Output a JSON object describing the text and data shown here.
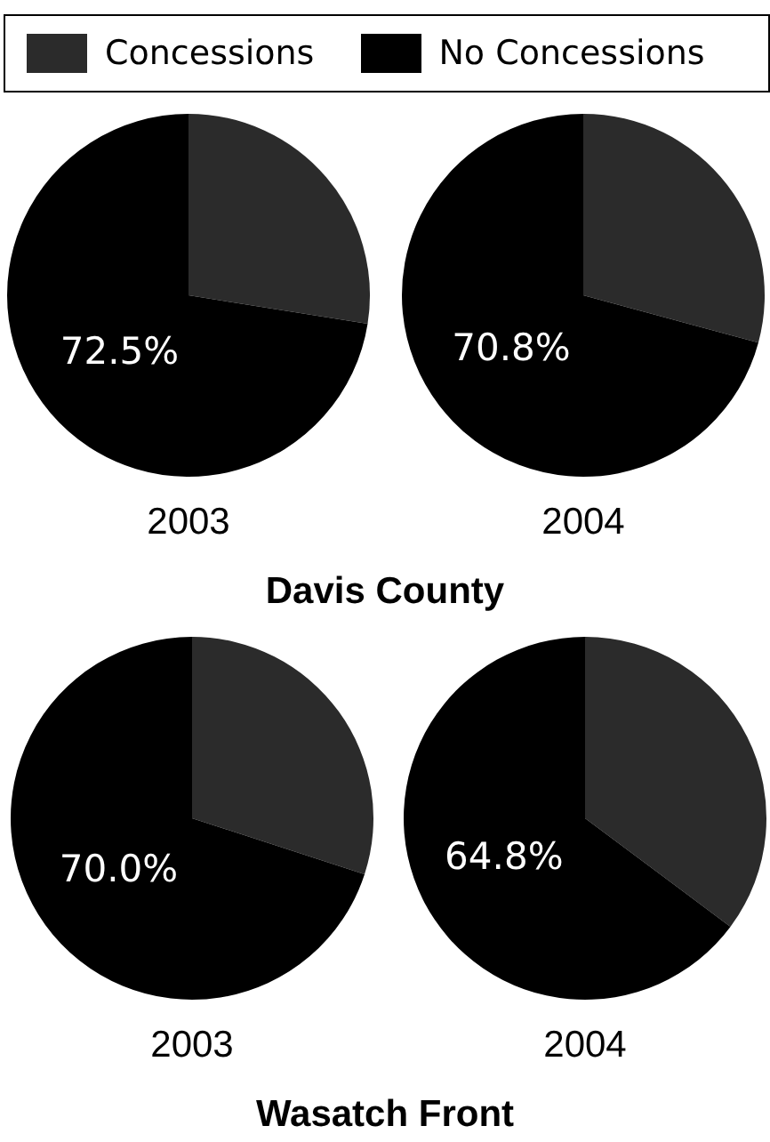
{
  "chart_data": [
    {
      "type": "pie",
      "title": "2003",
      "categories": [
        "Concessions",
        "No Concessions"
      ],
      "values": [
        27.5,
        72.5
      ],
      "colors": [
        "#2b2b2b",
        "#000000"
      ],
      "value_labels": [
        null,
        "72.5%"
      ],
      "legend": "top",
      "annotations": [
        "Davis County"
      ]
    },
    {
      "type": "pie",
      "title": "2004",
      "categories": [
        null,
        null
      ],
      "values": [
        29.2,
        70.8
      ],
      "colors": [
        "#2b2b2b",
        "#000000"
      ],
      "value_labels": [
        null,
        "70.8%"
      ]
    },
    {
      "type": "pie",
      "title": "2003",
      "categories": [
        null,
        null
      ],
      "values": [
        30,
        70
      ],
      "colors": [
        "#2b2b2b",
        "#000000"
      ],
      "value_labels": [
        null,
        "70.0%"
      ],
      "annotations": [
        "Wasatch Front"
      ]
    },
    {
      "type": "pie",
      "title": "2004",
      "categories": [
        null,
        null
      ],
      "values": [
        35.2,
        64.8
      ],
      "colors": [
        "#2b2b2b",
        "#000000"
      ],
      "value_labels": [
        null,
        "64.8%"
      ]
    }
  ]
}
